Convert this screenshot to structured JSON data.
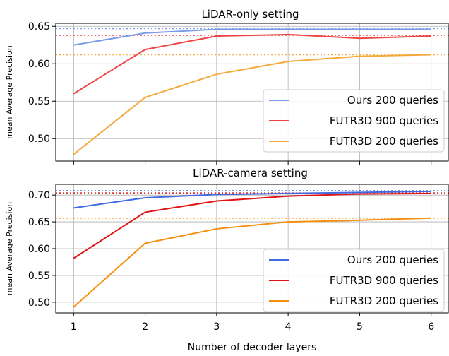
{
  "figure": {
    "xlabel": "Number of decoder layers"
  },
  "chart_data": [
    {
      "type": "line",
      "title": "LiDAR-only setting",
      "xlabel": "",
      "ylabel": "mean Average Precision",
      "x": [
        1,
        2,
        3,
        4,
        5,
        6
      ],
      "xticks": [
        1,
        2,
        3,
        4,
        5,
        6
      ],
      "xlim": [
        0.75,
        6.25
      ],
      "yticks": [
        "0.50",
        "0.55",
        "0.60",
        "0.65"
      ],
      "ylim": [
        0.47,
        0.654
      ],
      "grid": true,
      "legend_position": "lower-right",
      "series": [
        {
          "name": "Ours 200 queries",
          "color": "#7b9be8",
          "values": [
            0.625,
            0.641,
            0.646,
            0.646,
            0.646,
            0.646
          ],
          "reference": 0.647
        },
        {
          "name": "FUTR3D 900 queries",
          "color": "#ee4444",
          "values": [
            0.56,
            0.619,
            0.637,
            0.639,
            0.634,
            0.637
          ],
          "reference": 0.638
        },
        {
          "name": "FUTR3D 200 queries",
          "color": "#f5a93c",
          "values": [
            0.479,
            0.555,
            0.586,
            0.603,
            0.61,
            0.612
          ],
          "reference": 0.612
        }
      ]
    },
    {
      "type": "line",
      "title": "LiDAR-camera setting",
      "xlabel": "Number of decoder layers",
      "ylabel": "mean Average Precision",
      "x": [
        1,
        2,
        3,
        4,
        5,
        6
      ],
      "xticks": [
        1,
        2,
        3,
        4,
        5,
        6
      ],
      "xlim": [
        0.75,
        6.25
      ],
      "yticks": [
        "0.50",
        "0.55",
        "0.60",
        "0.65",
        "0.70"
      ],
      "ylim": [
        0.48,
        0.72
      ],
      "grid": true,
      "legend_position": "lower-right",
      "series": [
        {
          "name": "Ours 200 queries",
          "color": "#4169e1",
          "values": [
            0.676,
            0.695,
            0.701,
            0.703,
            0.705,
            0.707
          ],
          "reference": 0.708
        },
        {
          "name": "FUTR3D 900 queries",
          "color": "#e11414",
          "values": [
            0.582,
            0.668,
            0.689,
            0.698,
            0.702,
            0.703
          ],
          "reference": 0.704
        },
        {
          "name": "FUTR3D 200 queries",
          "color": "#f5900f",
          "values": [
            0.491,
            0.61,
            0.637,
            0.65,
            0.653,
            0.657
          ],
          "reference": 0.657
        }
      ]
    }
  ]
}
